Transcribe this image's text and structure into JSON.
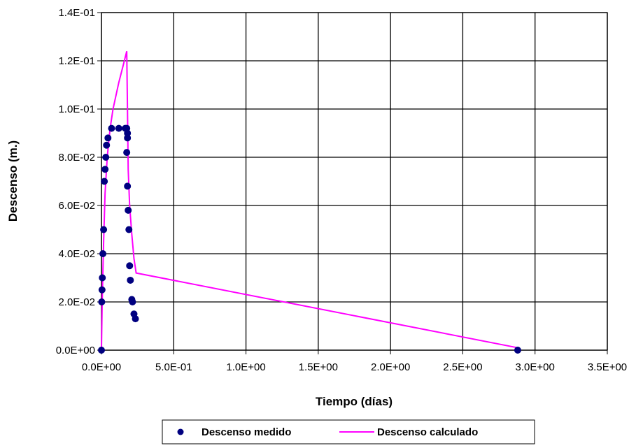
{
  "chart_data": {
    "type": "scatter",
    "xlabel": "Tiempo (días)",
    "ylabel": "Descenso (m.)",
    "xlim": [
      0,
      3.5
    ],
    "ylim": [
      0,
      0.14
    ],
    "x_ticks": [
      0,
      0.5,
      1.0,
      1.5,
      2.0,
      2.5,
      3.0,
      3.5
    ],
    "x_tick_labels": [
      "0.0E+00",
      "5.0E-01",
      "1.0E+00",
      "1.5E+00",
      "2.0E+00",
      "2.5E+00",
      "3.0E+00",
      "3.5E+00"
    ],
    "y_ticks": [
      0,
      0.02,
      0.04,
      0.06,
      0.08,
      0.1,
      0.12,
      0.14
    ],
    "y_tick_labels": [
      "0.0E+00",
      "2.0E-02",
      "4.0E-02",
      "6.0E-02",
      "8.0E-02",
      "1.0E-01",
      "1.2E-01",
      "1.4E-01"
    ],
    "grid": true,
    "legend_position": "bottom",
    "series": [
      {
        "name": "Descenso medido",
        "kind": "scatter",
        "color": "#000080",
        "points": [
          [
            0.0,
            0.0
          ],
          [
            0.002,
            0.02
          ],
          [
            0.004,
            0.025
          ],
          [
            0.006,
            0.03
          ],
          [
            0.01,
            0.04
          ],
          [
            0.015,
            0.05
          ],
          [
            0.02,
            0.07
          ],
          [
            0.025,
            0.075
          ],
          [
            0.03,
            0.08
          ],
          [
            0.035,
            0.085
          ],
          [
            0.045,
            0.088
          ],
          [
            0.07,
            0.092
          ],
          [
            0.12,
            0.092
          ],
          [
            0.165,
            0.092
          ],
          [
            0.175,
            0.092
          ],
          [
            0.18,
            0.09
          ],
          [
            0.18,
            0.088
          ],
          [
            0.175,
            0.082
          ],
          [
            0.18,
            0.068
          ],
          [
            0.185,
            0.058
          ],
          [
            0.19,
            0.05
          ],
          [
            0.195,
            0.035
          ],
          [
            0.2,
            0.029
          ],
          [
            0.21,
            0.021
          ],
          [
            0.215,
            0.02
          ],
          [
            0.225,
            0.015
          ],
          [
            0.235,
            0.013
          ],
          [
            2.88,
            0.0
          ]
        ]
      },
      {
        "name": "Descenso calculado",
        "kind": "line",
        "color": "#ff00ff",
        "points": [
          [
            0.0,
            0.0
          ],
          [
            0.005,
            0.02
          ],
          [
            0.015,
            0.045
          ],
          [
            0.025,
            0.065
          ],
          [
            0.04,
            0.08
          ],
          [
            0.06,
            0.092
          ],
          [
            0.08,
            0.1
          ],
          [
            0.12,
            0.111
          ],
          [
            0.15,
            0.118
          ],
          [
            0.175,
            0.124
          ],
          [
            0.18,
            0.1
          ],
          [
            0.185,
            0.075
          ],
          [
            0.195,
            0.06
          ],
          [
            0.21,
            0.048
          ],
          [
            0.225,
            0.038
          ],
          [
            0.24,
            0.032
          ],
          [
            2.88,
            0.001
          ]
        ]
      }
    ]
  }
}
